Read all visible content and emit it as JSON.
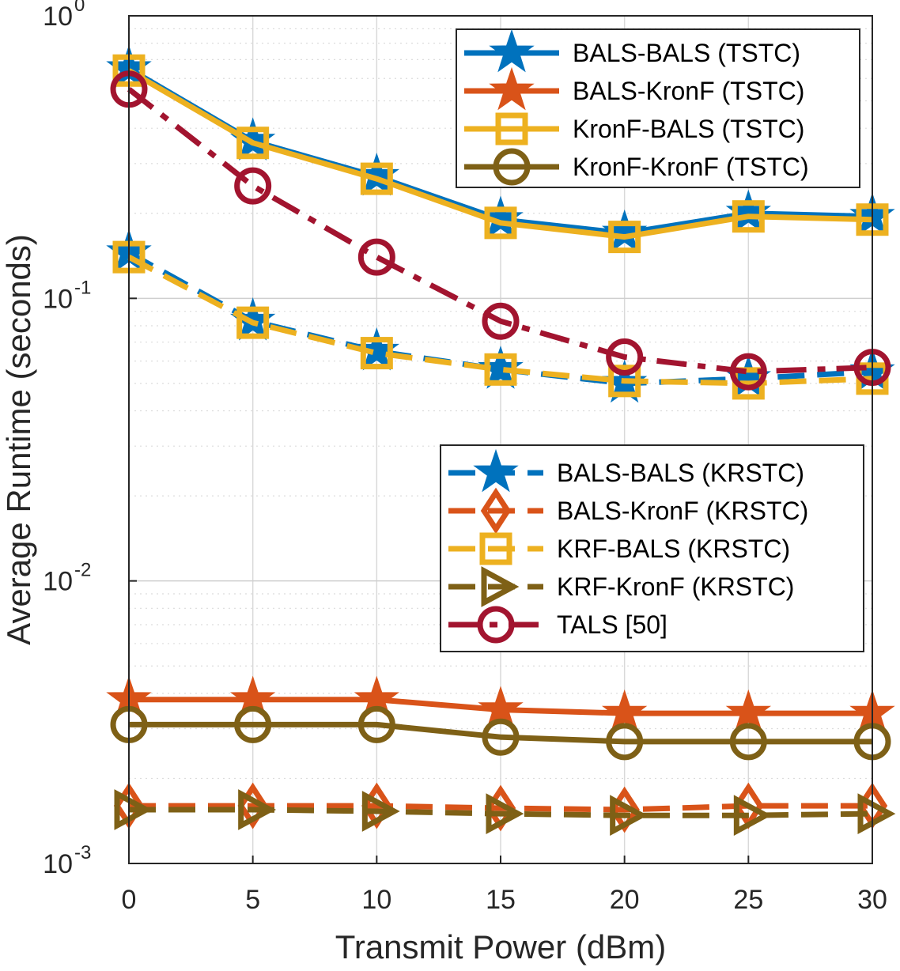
{
  "chart_data": {
    "type": "line",
    "xlabel": "Transmit Power (dBm)",
    "ylabel": "Average Runtime (seconds)",
    "x": [
      0,
      5,
      10,
      15,
      20,
      25,
      30
    ],
    "xlim": [
      0,
      30
    ],
    "ylim": [
      0.001,
      1
    ],
    "yscale": "log",
    "grid": true,
    "x_ticks": [
      "0",
      "5",
      "10",
      "15",
      "20",
      "25",
      "30"
    ],
    "y_ticks": [
      {
        "base": "10",
        "exp": "-3"
      },
      {
        "base": "10",
        "exp": "-2"
      },
      {
        "base": "10",
        "exp": "-1"
      },
      {
        "base": "10",
        "exp": "0"
      }
    ],
    "legends": [
      {
        "placement": "top-right",
        "entries": [
          "BALS-BALS (TSTC)",
          "BALS-KronF (TSTC)",
          "KronF-BALS (TSTC)",
          "KronF-KronF (TSTC)"
        ]
      },
      {
        "placement": "center-right",
        "entries": [
          "BALS-BALS (KRSTC)",
          "BALS-KronF (KRSTC)",
          "KRF-BALS (KRSTC)",
          "KRF-KronF (KRSTC)",
          "TALS [50]"
        ]
      }
    ],
    "series": [
      {
        "name": "BALS-BALS (TSTC)",
        "color": "#0072BD",
        "marker": "star",
        "dash": "solid",
        "legend": 0,
        "values": [
          0.65,
          0.36,
          0.27,
          0.19,
          0.17,
          0.2,
          0.195
        ]
      },
      {
        "name": "KronF-BALS (TSTC)",
        "color": "#EDB120",
        "marker": "square",
        "dash": "solid",
        "legend": 0,
        "values": [
          0.64,
          0.355,
          0.265,
          0.185,
          0.165,
          0.195,
          0.19
        ]
      },
      {
        "name": "BALS-BALS (KRSTC)",
        "color": "#0072BD",
        "marker": "star",
        "dash": "dashed",
        "legend": 1,
        "values": [
          0.145,
          0.083,
          0.065,
          0.056,
          0.05,
          0.052,
          0.055
        ]
      },
      {
        "name": "KRF-BALS (KRSTC)",
        "color": "#EDB120",
        "marker": "square",
        "dash": "dashed",
        "legend": 1,
        "values": [
          0.14,
          0.082,
          0.064,
          0.056,
          0.051,
          0.05,
          0.052
        ]
      },
      {
        "name": "TALS [50]",
        "color": "#A2142F",
        "marker": "circle",
        "dash": "dashdot",
        "legend": 1,
        "values": [
          0.55,
          0.25,
          0.14,
          0.083,
          0.062,
          0.055,
          0.057
        ]
      },
      {
        "name": "BALS-KronF (TSTC)",
        "color": "#D95319",
        "marker": "star",
        "dash": "solid",
        "legend": 0,
        "values": [
          0.0038,
          0.0038,
          0.0038,
          0.0035,
          0.0034,
          0.0034,
          0.0034
        ]
      },
      {
        "name": "KronF-KronF (TSTC)",
        "color": "#7E6016",
        "marker": "circle",
        "dash": "solid",
        "legend": 0,
        "values": [
          0.0031,
          0.0031,
          0.0031,
          0.0028,
          0.0027,
          0.0027,
          0.0027
        ]
      },
      {
        "name": "BALS-KronF (KRSTC)",
        "color": "#D95319",
        "marker": "diamond",
        "dash": "dashed",
        "legend": 1,
        "values": [
          0.0016,
          0.0016,
          0.0016,
          0.00157,
          0.00155,
          0.0016,
          0.0016
        ]
      },
      {
        "name": "KRF-KronF (KRSTC)",
        "color": "#7E6016",
        "marker": "triangle-right",
        "dash": "dashed",
        "legend": 1,
        "values": [
          0.00155,
          0.00155,
          0.00153,
          0.0015,
          0.00148,
          0.00148,
          0.0015
        ]
      }
    ]
  }
}
